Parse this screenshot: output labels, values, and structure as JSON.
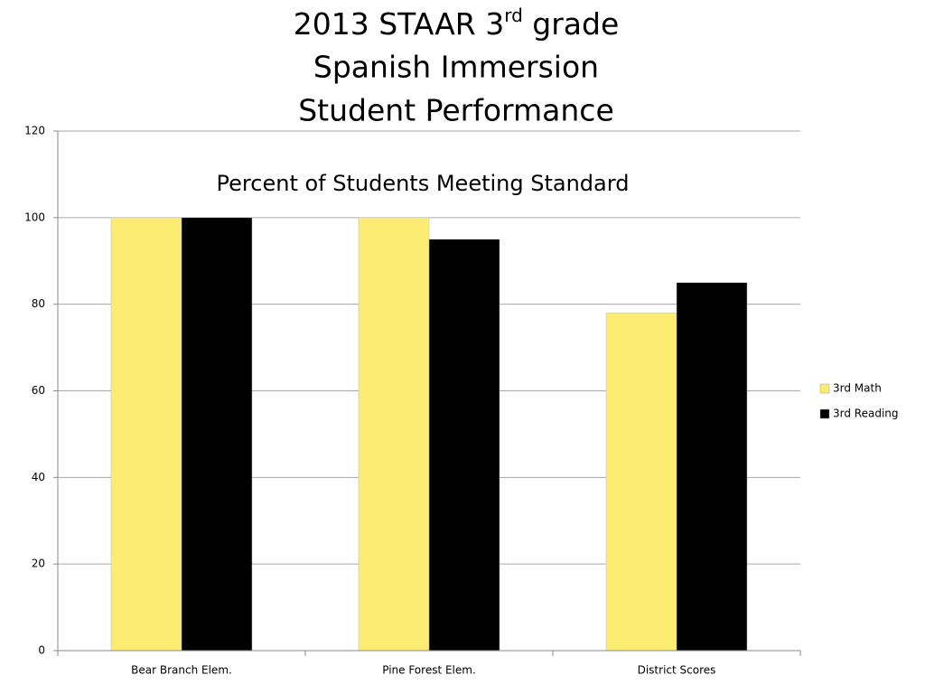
{
  "chart_data": {
    "type": "bar",
    "title": [
      [
        "2013 STAAR 3",
        "rd",
        " grade"
      ],
      [
        "Spanish Immersion"
      ],
      [
        "Student Performance"
      ]
    ],
    "subtitle": "Percent of Students Meeting Standard",
    "categories": [
      "Bear Branch Elem.",
      "Pine Forest Elem.",
      "District Scores"
    ],
    "series": [
      {
        "name": "3rd Math",
        "color": "#fcec72",
        "values": [
          100,
          100,
          78
        ]
      },
      {
        "name": "3rd Reading",
        "color": "#000000",
        "values": [
          100,
          95,
          85
        ]
      }
    ],
    "ylim": [
      0,
      120
    ],
    "yticks": [
      0,
      20,
      40,
      60,
      80,
      100,
      120
    ],
    "grid": true,
    "legend": "right"
  }
}
